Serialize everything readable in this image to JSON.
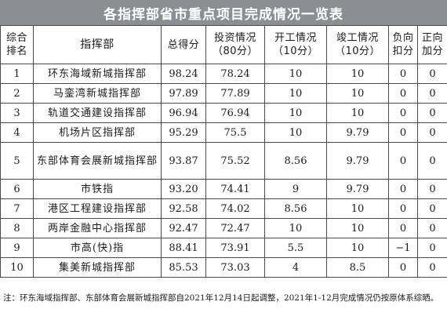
{
  "title": "各指挥部省市重点项目完成情况一览表",
  "header": {
    "rank": [
      "综合",
      "排名"
    ],
    "name": "指挥部",
    "total": "总得分",
    "invest": [
      "投资情况",
      "（80分）"
    ],
    "start": [
      "开工情况",
      "（10分）"
    ],
    "complete": [
      "竣工情况",
      "（10分）"
    ],
    "minus": [
      "负向",
      "扣分"
    ],
    "plus": [
      "正向",
      "加分"
    ]
  },
  "rows": [
    {
      "rank": "1",
      "name": "环东海域新城指挥部",
      "total": "98.24",
      "invest": "78.24",
      "start": "10",
      "complete": "10",
      "minus": "0",
      "plus": "0"
    },
    {
      "rank": "2",
      "name": "马銮湾新城指挥部",
      "total": "97.89",
      "invest": "77.89",
      "start": "10",
      "complete": "10",
      "minus": "0",
      "plus": "0"
    },
    {
      "rank": "3",
      "name": "轨道交通建设指挥部",
      "total": "96.94",
      "invest": "76.94",
      "start": "10",
      "complete": "10",
      "minus": "0",
      "plus": "0"
    },
    {
      "rank": "4",
      "name": "机场片区指挥部",
      "total": "95.29",
      "invest": "75.5",
      "start": "10",
      "complete": "9.79",
      "minus": "0",
      "plus": "0"
    },
    {
      "rank": "5",
      "name": "东部体育会展新城指挥部",
      "total": "93.87",
      "invest": "75.52",
      "start": "8.56",
      "complete": "9.79",
      "minus": "0",
      "plus": "0"
    },
    {
      "rank": "6",
      "name": "市铁指",
      "total": "93.20",
      "invest": "74.41",
      "start": "9",
      "complete": "9.79",
      "minus": "0",
      "plus": "0"
    },
    {
      "rank": "7",
      "name": "港区工程建设指挥部",
      "total": "92.58",
      "invest": "74.02",
      "start": "8.56",
      "complete": "10",
      "minus": "0",
      "plus": "0"
    },
    {
      "rank": "8",
      "name": "两岸金融中心指挥部",
      "total": "92.47",
      "invest": "72.47",
      "start": "10",
      "complete": "10",
      "minus": "0",
      "plus": "0"
    },
    {
      "rank": "9",
      "name": "市高(快)指",
      "total": "88.41",
      "invest": "73.91",
      "start": "5.5",
      "complete": "10",
      "minus": "−1",
      "plus": "0"
    },
    {
      "rank": "10",
      "name": "集美新城指挥部",
      "total": "85.53",
      "invest": "73.03",
      "start": "4",
      "complete": "8.5",
      "minus": "0",
      "plus": "0"
    }
  ],
  "note": "注：环东海域指挥部、东部体育会展新城指挥部自2021年12月14日起调整，2021年1-12月完成情况仍按原体系综晒。"
}
